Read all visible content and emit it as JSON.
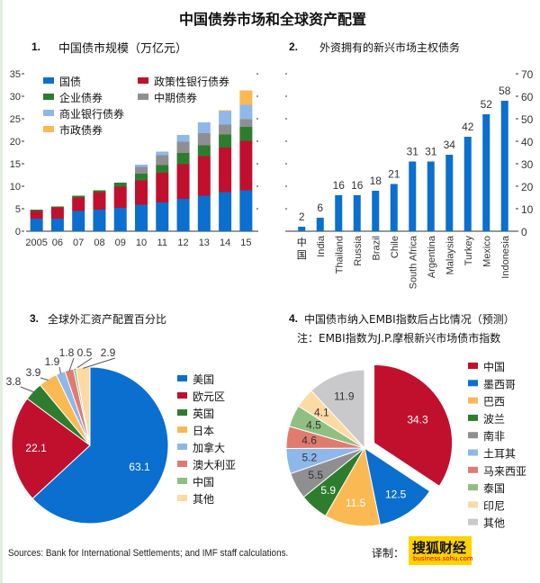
{
  "title": "中国债券市场和全球资产配置",
  "colors": {
    "blue": "#0a6fce",
    "red": "#c0102e",
    "green": "#2e7d2e",
    "gray": "#8f8f92",
    "lightblue": "#8fb8ea",
    "orange": "#fbb954",
    "salmon": "#e07b70",
    "lightgreen": "#90bf82",
    "peach": "#fdd9a4",
    "lightgray": "#c9c9cc"
  },
  "chart_data": [
    {
      "type": "bar",
      "stacked": true,
      "number": "1.",
      "title": "中国债市规模（万亿元）",
      "categories": [
        "2005",
        "06",
        "07",
        "08",
        "09",
        "10",
        "11",
        "12",
        "13",
        "14",
        "15"
      ],
      "ylim": [
        0,
        35
      ],
      "yticks": [
        0,
        5,
        10,
        15,
        20,
        25,
        30,
        35
      ],
      "series": [
        {
          "name": "国债",
          "color": "#0a6fce",
          "values": [
            2.8,
            2.8,
            4.5,
            4.8,
            5.2,
            5.9,
            6.4,
            7.2,
            7.9,
            8.7,
            9.1
          ]
        },
        {
          "name": "政策性银行债券",
          "color": "#c0102e",
          "values": [
            1.7,
            2.5,
            3.0,
            3.9,
            4.7,
            5.4,
            6.6,
            7.7,
            8.8,
            9.9,
            11.0
          ]
        },
        {
          "name": "企业债券",
          "color": "#2e7d2e",
          "values": [
            0.3,
            0.2,
            0.4,
            0.4,
            0.9,
            1.5,
            1.7,
            2.5,
            2.4,
            2.9,
            3.1
          ]
        },
        {
          "name": "中期债券",
          "color": "#8f8f92",
          "values": [
            0,
            0,
            0,
            0,
            0,
            1.5,
            2.2,
            2.5,
            2.7,
            2.2,
            1.7
          ]
        },
        {
          "name": "商业银行债券",
          "color": "#8fb8ea",
          "values": [
            0,
            0,
            0,
            0,
            0,
            0.5,
            0.8,
            1.5,
            2.4,
            3.0,
            3.2
          ]
        },
        {
          "name": "市政债券",
          "color": "#fbb954",
          "values": [
            0,
            0,
            0,
            0,
            0,
            0,
            0,
            0,
            0,
            0.2,
            3.2
          ]
        }
      ]
    },
    {
      "type": "bar",
      "number": "2.",
      "title": "外资拥有的新兴市场主权债务",
      "categories": [
        "中国",
        "India",
        "Thailand",
        "Russia",
        "Brazil",
        "Chile",
        "South Africa",
        "Argentina",
        "Malaysia",
        "Turkey",
        "Mexico",
        "Indonesia"
      ],
      "values": [
        2,
        6,
        16,
        16,
        18,
        21,
        31,
        31,
        34,
        42,
        52,
        58
      ],
      "ylim": [
        0,
        70
      ],
      "yticks": [
        0,
        10,
        20,
        30,
        40,
        50,
        60,
        70
      ],
      "yaxis": "right",
      "color": "#0a6fce"
    },
    {
      "type": "pie",
      "number": "3.",
      "title": "全球外汇资产配置百分比",
      "labels": [
        "美国",
        "欧元区",
        "英国",
        "日本",
        "加拿大",
        "澳大利亚",
        "中国",
        "其他"
      ],
      "values": [
        63.1,
        22.1,
        3.8,
        3.9,
        1.9,
        1.8,
        0.5,
        2.9
      ],
      "colors": [
        "#0a6fce",
        "#c0102e",
        "#2e7d2e",
        "#fbb954",
        "#8fb8ea",
        "#e07b70",
        "#90bf82",
        "#fdd9a4"
      ]
    },
    {
      "type": "pie",
      "number": "4.",
      "title": "中国债市纳入EMBI指数后占比情况（预测）",
      "subtitle": "注：EMBI指数为J.P.摩根新兴市场债市指数",
      "labels": [
        "中国",
        "墨西哥",
        "巴西",
        "波兰",
        "南非",
        "土耳其",
        "马来西亚",
        "泰国",
        "印尼",
        "其他"
      ],
      "values": [
        34.3,
        12.5,
        11.5,
        5.9,
        5.5,
        5.2,
        4.6,
        4.5,
        4.1,
        11.9
      ],
      "colors": [
        "#c0102e",
        "#0a6fce",
        "#fbb954",
        "#2e7d2e",
        "#8f8f92",
        "#8fb8ea",
        "#e07b70",
        "#90bf82",
        "#fdd9a4",
        "#c9c9cc"
      ],
      "exploded": "中国"
    }
  ],
  "footer": {
    "sources": "Sources: Bank for International Settlements; and IMF staff calculations.",
    "translator": "译制：",
    "logo_text": "搜狐财经",
    "logo_url": "business.sohu.com"
  }
}
